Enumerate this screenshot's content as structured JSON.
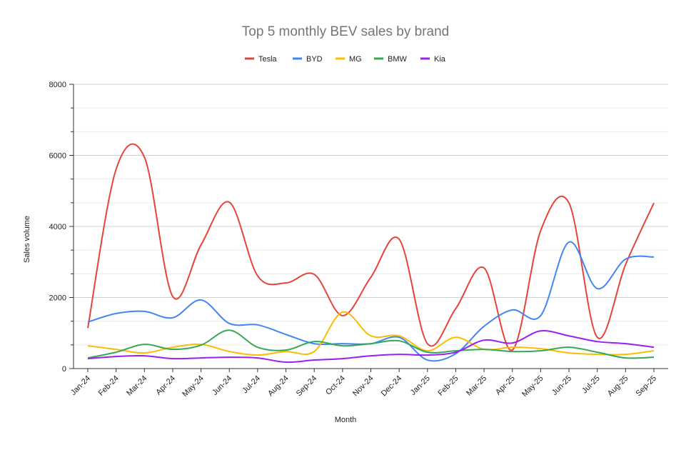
{
  "chart_data": {
    "type": "line",
    "title": "Top 5 monthly BEV sales by brand",
    "xlabel": "Month",
    "ylabel": "Sales volume",
    "ylim": [
      0,
      8000
    ],
    "yticks": [
      0,
      2000,
      4000,
      6000,
      8000
    ],
    "grid": true,
    "legend_position": "top",
    "categories": [
      "Jan-24",
      "Feb-24",
      "Mar-24",
      "Apr-24",
      "May-24",
      "Jun-24",
      "Jul-24",
      "Aug-24",
      "Sep-24",
      "Oct-24",
      "Nov-24",
      "Dec-24",
      "Jan-25",
      "Feb-25",
      "Mar-25",
      "Apr-25",
      "May-25",
      "Jun-25",
      "Jul-25",
      "Aug-25",
      "Sep-25"
    ],
    "series": [
      {
        "name": "Tesla",
        "color": "#e8423a",
        "values": [
          1140,
          5610,
          5950,
          2030,
          3480,
          4680,
          2610,
          2410,
          2650,
          1490,
          2570,
          3640,
          700,
          1690,
          2830,
          520,
          3880,
          4660,
          880,
          2930,
          4660
        ]
      },
      {
        "name": "BYD",
        "color": "#4285f4",
        "values": [
          1310,
          1550,
          1610,
          1430,
          1930,
          1270,
          1230,
          960,
          700,
          700,
          700,
          880,
          240,
          420,
          1190,
          1650,
          1490,
          3560,
          2250,
          3080,
          3140
        ]
      },
      {
        "name": "MG",
        "color": "#fbbc04",
        "values": [
          640,
          540,
          440,
          600,
          680,
          480,
          380,
          480,
          480,
          1590,
          920,
          920,
          500,
          880,
          540,
          600,
          560,
          440,
          400,
          400,
          500
        ]
      },
      {
        "name": "BMW",
        "color": "#34a853",
        "values": [
          300,
          460,
          680,
          540,
          660,
          1080,
          600,
          520,
          760,
          640,
          700,
          780,
          460,
          500,
          540,
          480,
          500,
          600,
          460,
          300,
          320
        ]
      },
      {
        "name": "Kia",
        "color": "#9b1ff0",
        "values": [
          280,
          340,
          360,
          280,
          300,
          320,
          300,
          180,
          240,
          280,
          360,
          400,
          380,
          460,
          800,
          720,
          1060,
          920,
          760,
          700,
          600
        ]
      }
    ]
  }
}
